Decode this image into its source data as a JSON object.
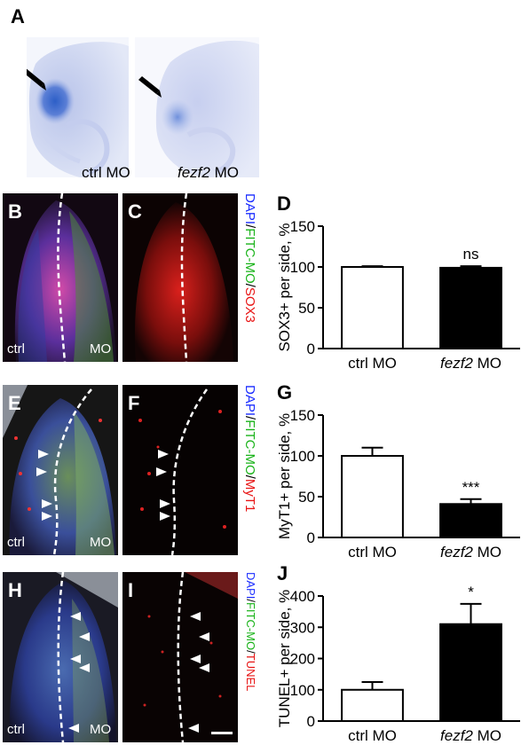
{
  "panels": {
    "A": {
      "letter": "A",
      "captions": [
        {
          "plain": "ctrl MO",
          "italic": "",
          "suffix": ""
        },
        {
          "plain": "",
          "italic": "fezf2",
          "suffix": " MO"
        }
      ]
    },
    "B": {
      "letter": "B",
      "ctrl": "ctrl",
      "mo": "MO"
    },
    "C": {
      "letter": "C"
    },
    "E": {
      "letter": "E",
      "ctrl": "ctrl",
      "mo": "MO"
    },
    "F": {
      "letter": "F"
    },
    "H": {
      "letter": "H",
      "ctrl": "ctrl",
      "mo": "MO"
    },
    "I": {
      "letter": "I"
    }
  },
  "stain_labels": [
    {
      "parts": [
        {
          "t": "DAPI",
          "c": "#1a2cff"
        },
        {
          "t": "/",
          "c": "#000000"
        },
        {
          "t": "FITC-MO",
          "c": "#19b319"
        },
        {
          "t": "/",
          "c": "#000000"
        },
        {
          "t": "SOX3",
          "c": "#e81414"
        }
      ]
    },
    {
      "parts": [
        {
          "t": "DAPI",
          "c": "#1a2cff"
        },
        {
          "t": "/",
          "c": "#000000"
        },
        {
          "t": "FITC-MO",
          "c": "#19b319"
        },
        {
          "t": "/",
          "c": "#000000"
        },
        {
          "t": "MyT1",
          "c": "#e81414"
        }
      ]
    },
    {
      "parts": [
        {
          "t": "DAPI",
          "c": "#1a2cff"
        },
        {
          "t": "/",
          "c": "#000000"
        },
        {
          "t": "FITC-MO",
          "c": "#19b319"
        },
        {
          "t": "/",
          "c": "#000000"
        },
        {
          "t": "TUNEL",
          "c": "#e81414"
        }
      ]
    }
  ],
  "chart_data": [
    {
      "panel": "D",
      "type": "bar",
      "categories": [
        "ctrl MO",
        "fezf2 MO"
      ],
      "categories_italic": [
        "",
        "fezf2"
      ],
      "values": [
        100,
        99
      ],
      "errors": [
        1,
        2
      ],
      "fills": [
        "#ffffff",
        "#000000"
      ],
      "significance": [
        "",
        "ns"
      ],
      "ylabel": "SOX3+ per side, %",
      "ylim": [
        0,
        150
      ],
      "yticks": [
        "0",
        "50",
        "100",
        "150"
      ]
    },
    {
      "panel": "G",
      "type": "bar",
      "categories": [
        "ctrl MO",
        "fezf2 MO"
      ],
      "categories_italic": [
        "",
        "fezf2"
      ],
      "values": [
        100,
        41
      ],
      "errors": [
        10,
        6
      ],
      "fills": [
        "#ffffff",
        "#000000"
      ],
      "significance": [
        "",
        "***"
      ],
      "ylabel": "MyT1+ per side, %",
      "ylim": [
        0,
        150
      ],
      "yticks": [
        "0",
        "50",
        "100",
        "150"
      ]
    },
    {
      "panel": "J",
      "type": "bar",
      "categories": [
        "ctrl MO",
        "fezf2 MO"
      ],
      "categories_italic": [
        "",
        "fezf2"
      ],
      "values": [
        100,
        310
      ],
      "errors": [
        25,
        65
      ],
      "fills": [
        "#ffffff",
        "#000000"
      ],
      "significance": [
        "",
        "*"
      ],
      "ylabel": "TUNEL+ per side, %",
      "ylim": [
        0,
        400
      ],
      "yticks": [
        "0",
        "100",
        "200",
        "300",
        "400"
      ]
    }
  ]
}
